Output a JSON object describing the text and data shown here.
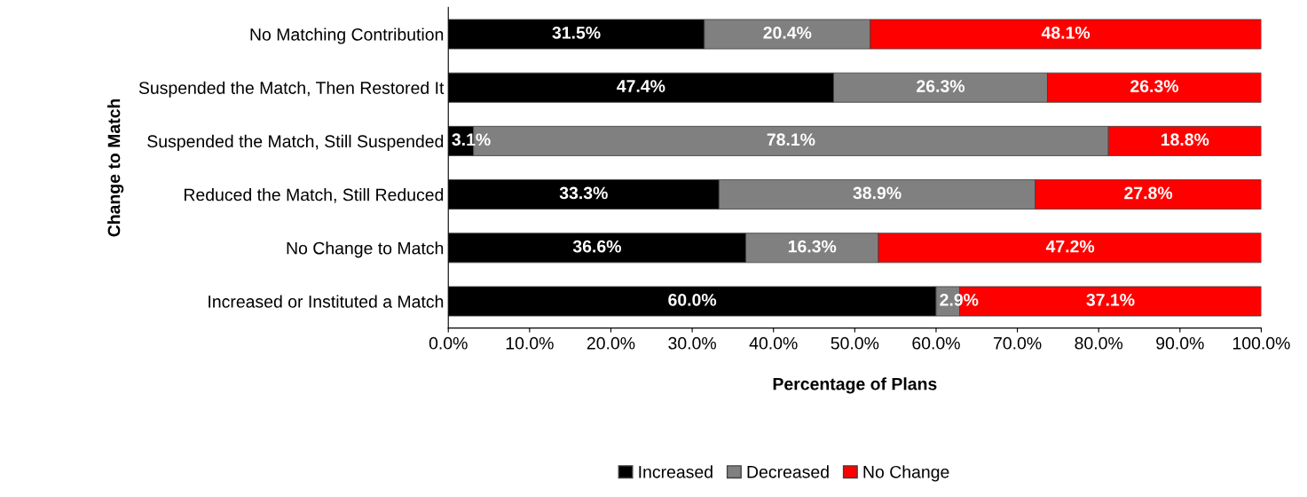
{
  "chart_data": {
    "type": "bar",
    "orientation": "horizontal",
    "stacked": true,
    "xlabel": "Percentage of Plans",
    "ylabel": "Change to Match",
    "categories": [
      "No Matching Contribution",
      "Suspended the Match, Then Restored It",
      "Suspended the Match, Still Suspended",
      "Reduced the Match, Still Reduced",
      "No Change to Match",
      "Increased or Instituted a Match"
    ],
    "series": [
      {
        "name": "Increased",
        "color": "#000000",
        "values": [
          31.5,
          47.4,
          3.1,
          33.3,
          36.6,
          60.0
        ],
        "value_labels": [
          "31.5%",
          "47.4%",
          "3.1%",
          "33.3%",
          "36.6%",
          "60.0%"
        ]
      },
      {
        "name": "Decreased",
        "color": "#808080",
        "values": [
          20.4,
          26.3,
          78.1,
          38.9,
          16.3,
          2.9
        ],
        "value_labels": [
          "20.4%",
          "26.3%",
          "78.1%",
          "38.9%",
          "16.3%",
          "2.9%"
        ]
      },
      {
        "name": "No Change",
        "color": "#ff0000",
        "values": [
          48.1,
          26.3,
          18.8,
          27.8,
          47.2,
          37.1
        ],
        "value_labels": [
          "48.1%",
          "26.3%",
          "18.8%",
          "27.8%",
          "47.2%",
          "37.1%"
        ]
      }
    ],
    "xlim": [
      0,
      100
    ],
    "xticks": [
      {
        "value": 0,
        "label": "0.0%"
      },
      {
        "value": 10,
        "label": "10.0%"
      },
      {
        "value": 20,
        "label": "20.0%"
      },
      {
        "value": 30,
        "label": "30.0%"
      },
      {
        "value": 40,
        "label": "40.0%"
      },
      {
        "value": 50,
        "label": "50.0%"
      },
      {
        "value": 60,
        "label": "60.0%"
      },
      {
        "value": 70,
        "label": "70.0%"
      },
      {
        "value": 80,
        "label": "80.0%"
      },
      {
        "value": 90,
        "label": "90.0%"
      },
      {
        "value": 100,
        "label": "100.0%"
      }
    ],
    "grid": false,
    "legend": "bottom"
  }
}
